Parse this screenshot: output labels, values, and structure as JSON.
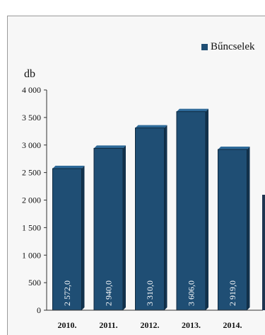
{
  "chart_data": {
    "type": "bar",
    "ylabel": "db",
    "ylim": [
      0,
      4000
    ],
    "y_ticks": [
      "0",
      "500",
      "1 000",
      "1 500",
      "2 000",
      "2 500",
      "3 000",
      "3 500",
      "4 000"
    ],
    "categories": [
      "2010.",
      "2011.",
      "2012.",
      "2013.",
      "2014."
    ],
    "series": [
      {
        "name": "Bűncselek",
        "values": [
          2572.0,
          2940.0,
          3310.0,
          3606.0,
          2919.0
        ],
        "labels": [
          "2 572,0",
          "2 940,0",
          "3 310,0",
          "3 606,0",
          "2 919,0"
        ],
        "color": "#1f4e74"
      }
    ],
    "legend_position": "top-right",
    "grid": false
  }
}
